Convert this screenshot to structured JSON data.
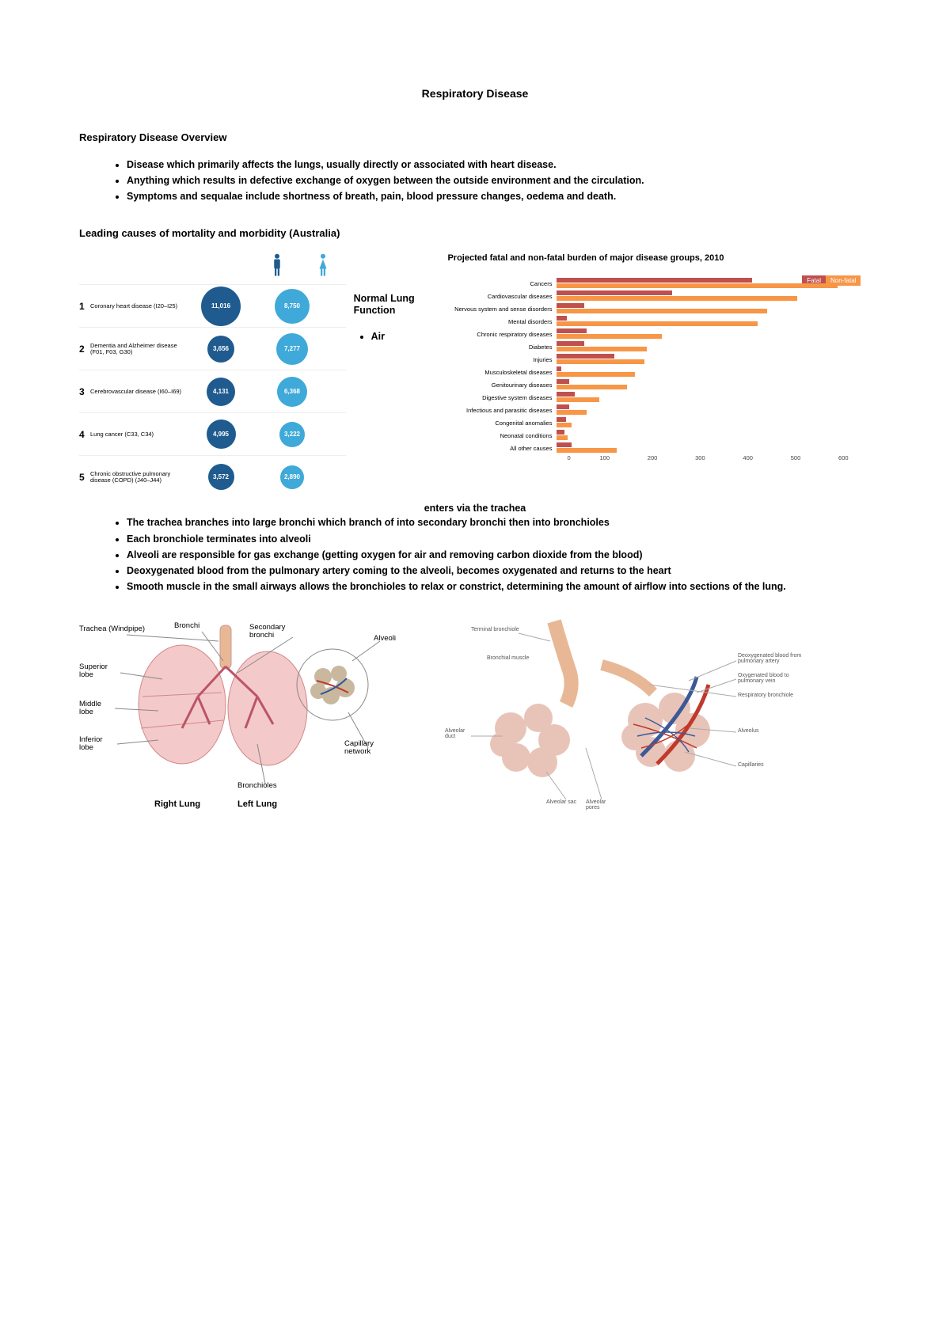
{
  "title": "Respiratory Disease",
  "overview": {
    "heading": "Respiratory Disease Overview",
    "bullets": [
      "Disease which primarily affects the lungs, usually directly or associated with heart disease.",
      "Anything which results in defective exchange of oxygen between the outside environment and the circulation.",
      "Symptoms and sequalae include shortness of breath, pain, blood pressure changes, oedema and death."
    ]
  },
  "mortality": {
    "heading": "Leading causes of mortality and morbidity (Australia)",
    "male_color": "#1f5b8e",
    "female_color": "#3fa9d9",
    "rows": [
      {
        "rank": "1",
        "label": "Coronary heart disease (I20–I25)",
        "male": "11,016",
        "male_size": 50,
        "female": "8,750",
        "female_size": 44
      },
      {
        "rank": "2",
        "label": "Dementia and Alzheimer disease (F01, F03, G30)",
        "male": "3,656",
        "male_size": 34,
        "female": "7,277",
        "female_size": 40
      },
      {
        "rank": "3",
        "label": "Cerebrovascular disease (I60–I69)",
        "male": "4,131",
        "male_size": 36,
        "female": "6,368",
        "female_size": 38
      },
      {
        "rank": "4",
        "label": "Lung cancer (C33, C34)",
        "male": "4,995",
        "male_size": 37,
        "female": "3,222",
        "female_size": 32
      },
      {
        "rank": "5",
        "label": "Chronic obstructive pulmonary disease (COPD) (J40–J44)",
        "male": "3,572",
        "male_size": 33,
        "female": "2,890",
        "female_size": 30
      }
    ]
  },
  "lung_function": {
    "heading": "Normal Lung Function",
    "bullet": "Air",
    "enters_line": "enters via the trachea",
    "bullets_after": [
      "The trachea branches into large bronchi which branch of into secondary bronchi then into bronchioles",
      "Each bronchiole terminates into alveoli",
      "Alveoli are responsible for gas exchange (getting oxygen for air and removing carbon dioxide from the blood)",
      "Deoxygenated blood from the pulmonary artery coming to the alveoli, becomes oxygenated and returns to the heart",
      "Smooth muscle in the small airways allows the bronchioles to relax or constrict, determining the amount of airflow into sections of the lung."
    ]
  },
  "burden_chart": {
    "title": "Projected fatal and non-fatal burden of major disease groups, 2010",
    "legend": {
      "fatal": "Fatal",
      "nonfatal": "Non-fatal"
    },
    "fatal_color": "#c0504d",
    "nonfatal_color": "#f79646",
    "axis_color": "#888888",
    "xmax": 600,
    "xtick_step": 100,
    "xticks": [
      "0",
      "100",
      "200",
      "300",
      "400",
      "500",
      "600"
    ],
    "categories": [
      {
        "label": "Cancers",
        "fatal": 390,
        "nonfatal": 560
      },
      {
        "label": "Cardiovascular diseases",
        "fatal": 230,
        "nonfatal": 480
      },
      {
        "label": "Nervous system and sense disorders",
        "fatal": 55,
        "nonfatal": 420
      },
      {
        "label": "Mental disorders",
        "fatal": 20,
        "nonfatal": 400
      },
      {
        "label": "Chronic respiratory diseases",
        "fatal": 60,
        "nonfatal": 210
      },
      {
        "label": "Diabetes",
        "fatal": 55,
        "nonfatal": 180
      },
      {
        "label": "Injuries",
        "fatal": 115,
        "nonfatal": 175
      },
      {
        "label": "Musculoskeletal diseases",
        "fatal": 8,
        "nonfatal": 155
      },
      {
        "label": "Genitourinary diseases",
        "fatal": 25,
        "nonfatal": 140
      },
      {
        "label": "Digestive system diseases",
        "fatal": 35,
        "nonfatal": 85
      },
      {
        "label": "Infectious and parasitic diseases",
        "fatal": 25,
        "nonfatal": 60
      },
      {
        "label": "Congenital anomalies",
        "fatal": 18,
        "nonfatal": 30
      },
      {
        "label": "Neonatal conditions",
        "fatal": 15,
        "nonfatal": 22
      },
      {
        "label": "All other causes",
        "fatal": 30,
        "nonfatal": 120
      }
    ]
  },
  "lung_diagram": {
    "labels": {
      "trachea": "Trachea (Windpipe)",
      "bronchi": "Bronchi",
      "secondary": "Secondary bronchi",
      "alveoli": "Alveoli",
      "superior": "Superior lobe",
      "middle": "Middle lobe",
      "inferior": "Inferior lobe",
      "bronchioles": "Bronchioles",
      "capillary": "Capillary network",
      "right": "Right Lung",
      "left": "Left Lung"
    },
    "lung_color": "#f4c9c9",
    "lung_border": "#d08888",
    "alveoli_color": "#c9b89e",
    "vessel_red": "#c0392b",
    "vessel_blue": "#2c5aa0"
  },
  "alveoli_diagram": {
    "labels": {
      "terminal": "Terminal bronchiole",
      "bronch_muscle": "Bronchial muscle",
      "deoxy": "Deoxygenated blood from pulmonary artery",
      "oxy": "Oxygenated blood to pulmonary vein",
      "resp_bronch": "Respiratory bronchiole",
      "alveolus": "Alveolus",
      "capillaries": "Capillaries",
      "alveolar_sac": "Alveolar sac",
      "alveolar_pore": "Alveolar pores",
      "alv_duct": "Alveolar duct"
    },
    "cluster_color": "#e8c4b8",
    "artery_color": "#3b5998",
    "vein_color": "#c0392b",
    "trachea_color": "#e8b896"
  }
}
